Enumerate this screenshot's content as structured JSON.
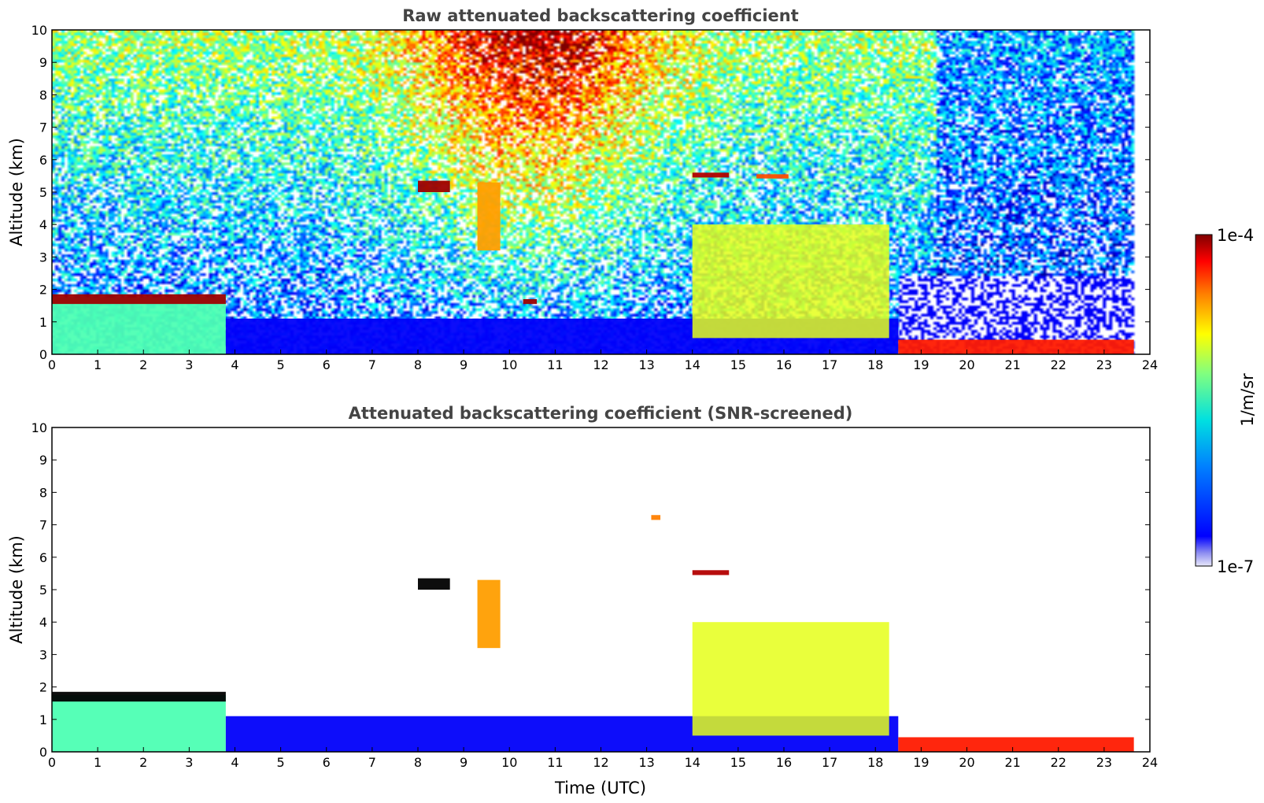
{
  "chart_data": [
    {
      "type": "heatmap",
      "title": "Raw attenuated backscattering coefficient",
      "xlabel": "",
      "ylabel": "Altitude (km)",
      "xlim": [
        0,
        24
      ],
      "ylim": [
        0,
        10
      ],
      "x_ticks": [
        "0",
        "1",
        "2",
        "3",
        "4",
        "5",
        "6",
        "7",
        "8",
        "9",
        "10",
        "11",
        "12",
        "13",
        "14",
        "15",
        "16",
        "17",
        "18",
        "19",
        "20",
        "21",
        "22",
        "23",
        "24"
      ],
      "y_ticks": [
        "0",
        "1",
        "2",
        "3",
        "4",
        "5",
        "6",
        "7",
        "8",
        "9",
        "10"
      ],
      "data_end_time": 23.65,
      "features": [
        {
          "kind": "aerosol-layer",
          "t0": 0.0,
          "t1": 3.8,
          "z0": 0.0,
          "z1": 1.75,
          "level": 0.45
        },
        {
          "kind": "cloud-top",
          "t0": 0.0,
          "t1": 3.8,
          "z0": 1.55,
          "z1": 1.85,
          "level": 0.97
        },
        {
          "kind": "boundary-layer",
          "t0": 3.8,
          "t1": 18.5,
          "z0": 0.0,
          "z1": 1.1,
          "level": 0.12
        },
        {
          "kind": "virga",
          "t0": 9.3,
          "t1": 9.8,
          "z0": 3.2,
          "z1": 5.3,
          "level": 0.72
        },
        {
          "kind": "cloud",
          "t0": 8.0,
          "t1": 8.7,
          "z0": 5.0,
          "z1": 5.35,
          "level": 0.97
        },
        {
          "kind": "cloud",
          "t0": 14.0,
          "t1": 14.8,
          "z0": 5.45,
          "z1": 5.6,
          "level": 0.95
        },
        {
          "kind": "cloud",
          "t0": 15.4,
          "t1": 16.1,
          "z0": 5.42,
          "z1": 5.55,
          "level": 0.8
        },
        {
          "kind": "cloud",
          "t0": 10.3,
          "t1": 10.6,
          "z0": 1.55,
          "z1": 1.7,
          "level": 0.97
        },
        {
          "kind": "precipitation",
          "t0": 14.0,
          "t1": 18.3,
          "z0": 0.5,
          "z1": 4.0,
          "level": 0.6
        },
        {
          "kind": "fog",
          "t0": 18.5,
          "t1": 23.65,
          "z0": 0.0,
          "z1": 0.45,
          "level": 0.85
        }
      ]
    },
    {
      "type": "heatmap",
      "title": "Attenuated backscattering coefficient (SNR-screened)",
      "xlabel": "Time (UTC)",
      "ylabel": "Altitude (km)",
      "xlim": [
        0,
        24
      ],
      "ylim": [
        0,
        10
      ],
      "x_ticks": [
        "0",
        "1",
        "2",
        "3",
        "4",
        "5",
        "6",
        "7",
        "8",
        "9",
        "10",
        "11",
        "12",
        "13",
        "14",
        "15",
        "16",
        "17",
        "18",
        "19",
        "20",
        "21",
        "22",
        "23",
        "24"
      ],
      "y_ticks": [
        "0",
        "1",
        "2",
        "3",
        "4",
        "5",
        "6",
        "7",
        "8",
        "9",
        "10"
      ],
      "data_end_time": 23.65,
      "features": [
        {
          "kind": "aerosol-layer",
          "t0": 0.0,
          "t1": 3.8,
          "z0": 0.0,
          "z1": 1.75,
          "level": 0.45
        },
        {
          "kind": "cloud-top",
          "t0": 0.0,
          "t1": 3.8,
          "z0": 1.55,
          "z1": 1.85,
          "level": 1.0
        },
        {
          "kind": "boundary-layer",
          "t0": 3.8,
          "t1": 18.5,
          "z0": 0.0,
          "z1": 1.1,
          "level": 0.12
        },
        {
          "kind": "virga",
          "t0": 9.3,
          "t1": 9.8,
          "z0": 3.2,
          "z1": 5.3,
          "level": 0.72
        },
        {
          "kind": "cloud",
          "t0": 8.0,
          "t1": 8.7,
          "z0": 5.0,
          "z1": 5.35,
          "level": 1.0
        },
        {
          "kind": "cloud",
          "t0": 14.0,
          "t1": 14.8,
          "z0": 5.45,
          "z1": 5.6,
          "level": 0.95
        },
        {
          "kind": "cloud",
          "t0": 13.1,
          "t1": 13.3,
          "z0": 7.15,
          "z1": 7.3,
          "level": 0.75
        },
        {
          "kind": "precipitation",
          "t0": 14.0,
          "t1": 18.3,
          "z0": 0.5,
          "z1": 4.0,
          "level": 0.6
        },
        {
          "kind": "fog",
          "t0": 18.5,
          "t1": 23.65,
          "z0": 0.0,
          "z1": 0.45,
          "level": 0.85
        }
      ]
    }
  ],
  "colorbar": {
    "label": "1/m/sr",
    "max_label": "1e-4",
    "min_label": "1e-7",
    "scale": "log",
    "colormap": "jet"
  }
}
